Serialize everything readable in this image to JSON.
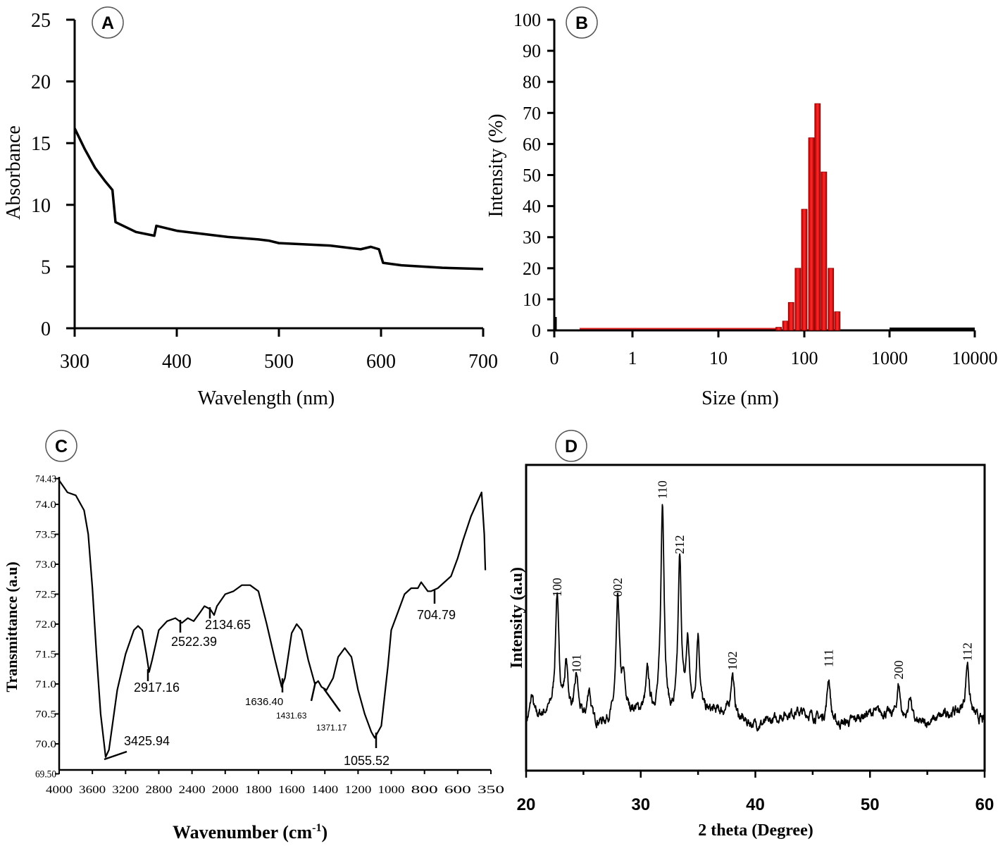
{
  "chart_data": [
    {
      "panel": "A",
      "type": "line",
      "xlabel": "Wavelength (nm)",
      "ylabel": "Absorbance",
      "xlim": [
        300,
        700
      ],
      "ylim": [
        0,
        25
      ],
      "xticks": [
        "300",
        "400",
        "500",
        "600",
        "700"
      ],
      "yticks": [
        "0",
        "5",
        "10",
        "15",
        "20",
        "25"
      ],
      "x": [
        300,
        310,
        320,
        330,
        337,
        340,
        350,
        360,
        378,
        380,
        400,
        420,
        450,
        480,
        490,
        500,
        550,
        580,
        590,
        598,
        602,
        620,
        660,
        700
      ],
      "y": [
        16.2,
        14.5,
        13.0,
        11.9,
        11.2,
        8.6,
        8.2,
        7.8,
        7.5,
        8.3,
        7.9,
        7.7,
        7.4,
        7.2,
        7.1,
        6.9,
        6.7,
        6.4,
        6.6,
        6.4,
        5.3,
        5.1,
        4.9,
        4.8
      ]
    },
    {
      "panel": "B",
      "type": "bar",
      "xlabel": "Size (nm)",
      "ylabel": "Intensity (%)",
      "xscale": "log",
      "ylim": [
        0,
        100
      ],
      "xticks": [
        "0",
        "1",
        "10",
        "100",
        "1000",
        "10000"
      ],
      "yticks": [
        "0",
        "10",
        "20",
        "30",
        "40",
        "50",
        "60",
        "70",
        "80",
        "90",
        "100"
      ],
      "x": [
        50,
        60,
        70,
        84,
        100,
        121,
        143,
        170,
        205,
        244
      ],
      "values": [
        1,
        3,
        9,
        20,
        39,
        62,
        73,
        51,
        20,
        6
      ]
    },
    {
      "panel": "C",
      "type": "line",
      "xlabel": "Wavenumber (cm",
      "xlabel_sup": "-1",
      "xlabel_close": ")",
      "ylabel": "Transmittance (a.u)",
      "ylim": [
        69.5,
        74.43
      ],
      "xticks": [
        "4000",
        "3600",
        "3200",
        "2800",
        "2400",
        "2000",
        "1800",
        "1600",
        "1400",
        "1200",
        "1000",
        "800",
        "600",
        "350"
      ],
      "yticks": [
        "69.50",
        "70.0",
        "70.5",
        "71.0",
        "71.5",
        "72.0",
        "72.5",
        "73.0",
        "73.5",
        "74.0",
        "74.43"
      ],
      "x": [
        4000,
        3900,
        3800,
        3700,
        3650,
        3600,
        3550,
        3500,
        3440,
        3400,
        3300,
        3200,
        3100,
        3050,
        3000,
        2950,
        2917,
        2880,
        2800,
        2700,
        2600,
        2522,
        2450,
        2380,
        2300,
        2250,
        2180,
        2134,
        2100,
        2000,
        1950,
        1900,
        1850,
        1800,
        1750,
        1700,
        1660,
        1640,
        1600,
        1570,
        1540,
        1500,
        1460,
        1440,
        1420,
        1390,
        1350,
        1320,
        1280,
        1240,
        1200,
        1160,
        1120,
        1100,
        1060,
        1020,
        1000,
        960,
        920,
        880,
        840,
        820,
        780,
        760,
        720,
        680,
        640,
        600,
        560,
        500,
        420,
        400,
        392
      ],
      "y": [
        74.4,
        74.2,
        74.15,
        73.9,
        73.5,
        72.6,
        71.5,
        70.5,
        69.78,
        69.9,
        70.9,
        71.5,
        71.9,
        71.97,
        71.9,
        71.5,
        71.2,
        71.4,
        71.9,
        72.05,
        72.1,
        72.02,
        72.1,
        72.05,
        72.2,
        72.3,
        72.25,
        72.15,
        72.3,
        72.5,
        72.55,
        72.65,
        72.65,
        72.55,
        72.0,
        71.4,
        70.95,
        71.1,
        71.85,
        72.0,
        71.9,
        71.4,
        71.0,
        71.05,
        70.95,
        70.9,
        71.1,
        71.45,
        71.6,
        71.45,
        70.9,
        70.5,
        70.2,
        70.1,
        70.3,
        71.3,
        71.9,
        72.2,
        72.5,
        72.6,
        72.6,
        72.7,
        72.55,
        72.55,
        72.6,
        72.7,
        72.8,
        73.1,
        73.4,
        73.8,
        74.2,
        73.5,
        72.9
      ],
      "annotations": [
        "3425.94",
        "2917.16",
        "2522.39",
        "2134.65",
        "1636.40",
        "1431.63",
        "1371.17",
        "1055.52",
        "704.79"
      ]
    },
    {
      "panel": "D",
      "type": "line",
      "xlabel": "2 theta (Degree)",
      "ylabel": "Intensity (a.u)",
      "xlim": [
        20,
        60
      ],
      "ylim": [
        0,
        100
      ],
      "xticks": [
        "20",
        "30",
        "40",
        "50",
        "60"
      ],
      "baseline": 17,
      "peaks": [
        {
          "x": 20.5,
          "h": 8,
          "label": ""
        },
        {
          "x": 22.7,
          "h": 38,
          "label": "100"
        },
        {
          "x": 23.5,
          "h": 15,
          "label": ""
        },
        {
          "x": 24.4,
          "h": 13,
          "label": "101"
        },
        {
          "x": 25.5,
          "h": 11,
          "label": ""
        },
        {
          "x": 28.0,
          "h": 38,
          "label": "002"
        },
        {
          "x": 28.5,
          "h": 10,
          "label": ""
        },
        {
          "x": 30.6,
          "h": 13,
          "label": ""
        },
        {
          "x": 31.9,
          "h": 70,
          "label": "110"
        },
        {
          "x": 33.4,
          "h": 52,
          "label": "212"
        },
        {
          "x": 34.1,
          "h": 24,
          "label": ""
        },
        {
          "x": 35.0,
          "h": 26,
          "label": ""
        },
        {
          "x": 38.0,
          "h": 14,
          "label": "102"
        },
        {
          "x": 46.4,
          "h": 15,
          "label": "111"
        },
        {
          "x": 52.5,
          "h": 11,
          "label": "200"
        },
        {
          "x": 53.5,
          "h": 9,
          "label": ""
        },
        {
          "x": 58.5,
          "h": 17,
          "label": "112"
        }
      ]
    }
  ],
  "panel_labels": [
    "A",
    "B",
    "C",
    "D"
  ]
}
